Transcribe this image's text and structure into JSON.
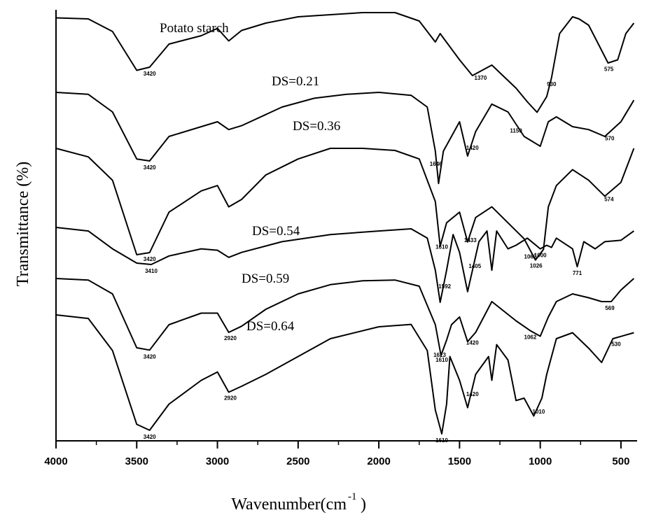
{
  "chart_data": {
    "type": "line",
    "title": "",
    "xlabel": "Wavenumber(cm",
    "xlabel_superscript": "-1",
    "xlabel_close": ")",
    "ylabel": "Transmittance (%)",
    "x_reversed": true,
    "xlim": [
      4000,
      400
    ],
    "xticks": [
      4000,
      3500,
      3000,
      2500,
      2000,
      1500,
      1000,
      500
    ],
    "xtick_labels": [
      "4000",
      "3500",
      "3000",
      "2500",
      "2000",
      "1500",
      "1000",
      "500"
    ],
    "grid": false,
    "legend": "none",
    "series": [
      {
        "name": "Potato starch",
        "points": [
          [
            4000,
            0.05
          ],
          [
            3800,
            0.06
          ],
          [
            3650,
            0.18
          ],
          [
            3500,
            0.55
          ],
          [
            3420,
            0.52
          ],
          [
            3300,
            0.3
          ],
          [
            3100,
            0.22
          ],
          [
            3000,
            0.15
          ],
          [
            2930,
            0.27
          ],
          [
            2850,
            0.17
          ],
          [
            2700,
            0.1
          ],
          [
            2500,
            0.04
          ],
          [
            2300,
            0.02
          ],
          [
            2100,
            0.0
          ],
          [
            1900,
            0.0
          ],
          [
            1750,
            0.08
          ],
          [
            1650,
            0.28
          ],
          [
            1620,
            0.2
          ],
          [
            1500,
            0.45
          ],
          [
            1420,
            0.6
          ],
          [
            1300,
            0.5
          ],
          [
            1150,
            0.72
          ],
          [
            1080,
            0.85
          ],
          [
            1020,
            0.95
          ],
          [
            960,
            0.8
          ],
          [
            930,
            0.62
          ],
          [
            880,
            0.2
          ],
          [
            800,
            0.04
          ],
          [
            760,
            0.06
          ],
          [
            700,
            0.12
          ],
          [
            640,
            0.3
          ],
          [
            580,
            0.48
          ],
          [
            520,
            0.45
          ],
          [
            470,
            0.2
          ],
          [
            420,
            0.1
          ]
        ],
        "peaks": [
          {
            "x": 3420,
            "label": "3420"
          },
          {
            "x": 1370,
            "label": "1370"
          },
          {
            "x": 930,
            "label": "930"
          },
          {
            "x": 575,
            "label": "575"
          }
        ]
      },
      {
        "name": "DS=0.21",
        "points": [
          [
            4000,
            0.0
          ],
          [
            3800,
            0.02
          ],
          [
            3650,
            0.2
          ],
          [
            3500,
            0.68
          ],
          [
            3420,
            0.7
          ],
          [
            3300,
            0.45
          ],
          [
            3100,
            0.35
          ],
          [
            3000,
            0.3
          ],
          [
            2930,
            0.38
          ],
          [
            2850,
            0.34
          ],
          [
            2600,
            0.15
          ],
          [
            2400,
            0.06
          ],
          [
            2200,
            0.02
          ],
          [
            2000,
            0.0
          ],
          [
            1800,
            0.03
          ],
          [
            1700,
            0.15
          ],
          [
            1650,
            0.6
          ],
          [
            1630,
            0.93
          ],
          [
            1600,
            0.6
          ],
          [
            1500,
            0.3
          ],
          [
            1450,
            0.65
          ],
          [
            1400,
            0.4
          ],
          [
            1300,
            0.12
          ],
          [
            1200,
            0.2
          ],
          [
            1100,
            0.45
          ],
          [
            1000,
            0.55
          ],
          [
            950,
            0.3
          ],
          [
            900,
            0.25
          ],
          [
            800,
            0.35
          ],
          [
            700,
            0.38
          ],
          [
            600,
            0.45
          ],
          [
            500,
            0.3
          ],
          [
            420,
            0.08
          ]
        ],
        "peaks": [
          {
            "x": 3420,
            "label": "3420"
          },
          {
            "x": 1646,
            "label": "1646"
          },
          {
            "x": 1420,
            "label": "1420"
          },
          {
            "x": 1150,
            "label": "1150"
          },
          {
            "x": 570,
            "label": "570"
          }
        ]
      },
      {
        "name": "DS=0.36",
        "points": [
          [
            4000,
            0.0
          ],
          [
            3800,
            0.08
          ],
          [
            3650,
            0.3
          ],
          [
            3500,
            1.0
          ],
          [
            3420,
            0.98
          ],
          [
            3300,
            0.6
          ],
          [
            3100,
            0.4
          ],
          [
            3000,
            0.35
          ],
          [
            2930,
            0.55
          ],
          [
            2850,
            0.48
          ],
          [
            2700,
            0.25
          ],
          [
            2500,
            0.1
          ],
          [
            2300,
            0.0
          ],
          [
            2100,
            0.0
          ],
          [
            1900,
            0.02
          ],
          [
            1750,
            0.1
          ],
          [
            1650,
            0.5
          ],
          [
            1620,
            0.92
          ],
          [
            1580,
            0.7
          ],
          [
            1500,
            0.6
          ],
          [
            1450,
            0.88
          ],
          [
            1400,
            0.65
          ],
          [
            1300,
            0.55
          ],
          [
            1200,
            0.7
          ],
          [
            1100,
            0.85
          ],
          [
            1030,
            1.05
          ],
          [
            980,
            0.95
          ],
          [
            950,
            0.55
          ],
          [
            900,
            0.35
          ],
          [
            800,
            0.2
          ],
          [
            700,
            0.3
          ],
          [
            600,
            0.45
          ],
          [
            500,
            0.32
          ],
          [
            420,
            0.0
          ]
        ],
        "peaks": [
          {
            "x": 3420,
            "label": "3420"
          },
          {
            "x": 1610,
            "label": "1610"
          },
          {
            "x": 1433,
            "label": "1433"
          },
          {
            "x": 1062,
            "label": "1062"
          },
          {
            "x": 1026,
            "label": "1026"
          },
          {
            "x": 574,
            "label": "574"
          }
        ]
      },
      {
        "name": "DS=0.54",
        "points": [
          [
            4000,
            0.0
          ],
          [
            3800,
            0.05
          ],
          [
            3650,
            0.3
          ],
          [
            3500,
            0.5
          ],
          [
            3410,
            0.52
          ],
          [
            3300,
            0.4
          ],
          [
            3100,
            0.3
          ],
          [
            3000,
            0.32
          ],
          [
            2930,
            0.42
          ],
          [
            2850,
            0.35
          ],
          [
            2600,
            0.2
          ],
          [
            2300,
            0.1
          ],
          [
            2000,
            0.05
          ],
          [
            1800,
            0.02
          ],
          [
            1700,
            0.15
          ],
          [
            1650,
            0.6
          ],
          [
            1620,
            1.05
          ],
          [
            1580,
            0.6
          ],
          [
            1540,
            0.1
          ],
          [
            1500,
            0.35
          ],
          [
            1450,
            0.9
          ],
          [
            1380,
            0.2
          ],
          [
            1330,
            0.05
          ],
          [
            1300,
            0.6
          ],
          [
            1270,
            0.05
          ],
          [
            1200,
            0.3
          ],
          [
            1150,
            0.25
          ],
          [
            1080,
            0.15
          ],
          [
            1000,
            0.3
          ],
          [
            960,
            0.25
          ],
          [
            930,
            0.28
          ],
          [
            900,
            0.15
          ],
          [
            800,
            0.3
          ],
          [
            771,
            0.55
          ],
          [
            730,
            0.2
          ],
          [
            660,
            0.3
          ],
          [
            600,
            0.2
          ],
          [
            500,
            0.18
          ],
          [
            420,
            0.05
          ]
        ],
        "peaks": [
          {
            "x": 3410,
            "label": "3410"
          },
          {
            "x": 1592,
            "label": "1592"
          },
          {
            "x": 1405,
            "label": "1405"
          },
          {
            "x": 1000,
            "label": "1000"
          },
          {
            "x": 771,
            "label": "771"
          }
        ]
      },
      {
        "name": "DS=0.59",
        "points": [
          [
            4000,
            0.0
          ],
          [
            3800,
            0.02
          ],
          [
            3650,
            0.2
          ],
          [
            3500,
            0.9
          ],
          [
            3420,
            0.93
          ],
          [
            3300,
            0.6
          ],
          [
            3100,
            0.45
          ],
          [
            3000,
            0.45
          ],
          [
            2930,
            0.7
          ],
          [
            2850,
            0.62
          ],
          [
            2700,
            0.4
          ],
          [
            2500,
            0.2
          ],
          [
            2300,
            0.08
          ],
          [
            2100,
            0.03
          ],
          [
            1900,
            0.02
          ],
          [
            1750,
            0.1
          ],
          [
            1650,
            0.6
          ],
          [
            1615,
            1.0
          ],
          [
            1580,
            0.8
          ],
          [
            1550,
            0.6
          ],
          [
            1500,
            0.5
          ],
          [
            1450,
            0.82
          ],
          [
            1400,
            0.7
          ],
          [
            1300,
            0.3
          ],
          [
            1150,
            0.55
          ],
          [
            1060,
            0.68
          ],
          [
            1000,
            0.75
          ],
          [
            950,
            0.5
          ],
          [
            900,
            0.3
          ],
          [
            800,
            0.2
          ],
          [
            700,
            0.25
          ],
          [
            620,
            0.3
          ],
          [
            560,
            0.3
          ],
          [
            500,
            0.15
          ],
          [
            420,
            0.0
          ]
        ],
        "peaks": [
          {
            "x": 3420,
            "label": "3420"
          },
          {
            "x": 2920,
            "label": "2920"
          },
          {
            "x": 1610,
            "label": "1610"
          },
          {
            "x": 1623,
            "label": "1623"
          },
          {
            "x": 1420,
            "label": "1420"
          },
          {
            "x": 1062,
            "label": "1062"
          },
          {
            "x": 569,
            "label": "569"
          }
        ]
      },
      {
        "name": "DS=0.64",
        "points": [
          [
            4000,
            0.0
          ],
          [
            3800,
            0.03
          ],
          [
            3650,
            0.3
          ],
          [
            3500,
            0.92
          ],
          [
            3420,
            0.97
          ],
          [
            3300,
            0.75
          ],
          [
            3100,
            0.55
          ],
          [
            3000,
            0.48
          ],
          [
            2930,
            0.65
          ],
          [
            2850,
            0.6
          ],
          [
            2700,
            0.5
          ],
          [
            2500,
            0.35
          ],
          [
            2300,
            0.2
          ],
          [
            2000,
            0.1
          ],
          [
            1800,
            0.08
          ],
          [
            1700,
            0.3
          ],
          [
            1650,
            0.8
          ],
          [
            1610,
            1.0
          ],
          [
            1580,
            0.75
          ],
          [
            1560,
            0.35
          ],
          [
            1500,
            0.55
          ],
          [
            1450,
            0.78
          ],
          [
            1400,
            0.5
          ],
          [
            1320,
            0.35
          ],
          [
            1300,
            0.55
          ],
          [
            1270,
            0.25
          ],
          [
            1200,
            0.38
          ],
          [
            1150,
            0.72
          ],
          [
            1100,
            0.7
          ],
          [
            1040,
            0.85
          ],
          [
            990,
            0.7
          ],
          [
            960,
            0.5
          ],
          [
            900,
            0.2
          ],
          [
            800,
            0.15
          ],
          [
            700,
            0.28
          ],
          [
            620,
            0.4
          ],
          [
            550,
            0.2
          ],
          [
            420,
            0.15
          ]
        ],
        "peaks": [
          {
            "x": 3420,
            "label": "3420"
          },
          {
            "x": 2920,
            "label": "2920"
          },
          {
            "x": 1610,
            "label": "1610"
          },
          {
            "x": 1420,
            "label": "1420"
          },
          {
            "x": 1010,
            "label": "1010"
          },
          {
            "x": 530,
            "label": "530"
          }
        ]
      }
    ]
  }
}
